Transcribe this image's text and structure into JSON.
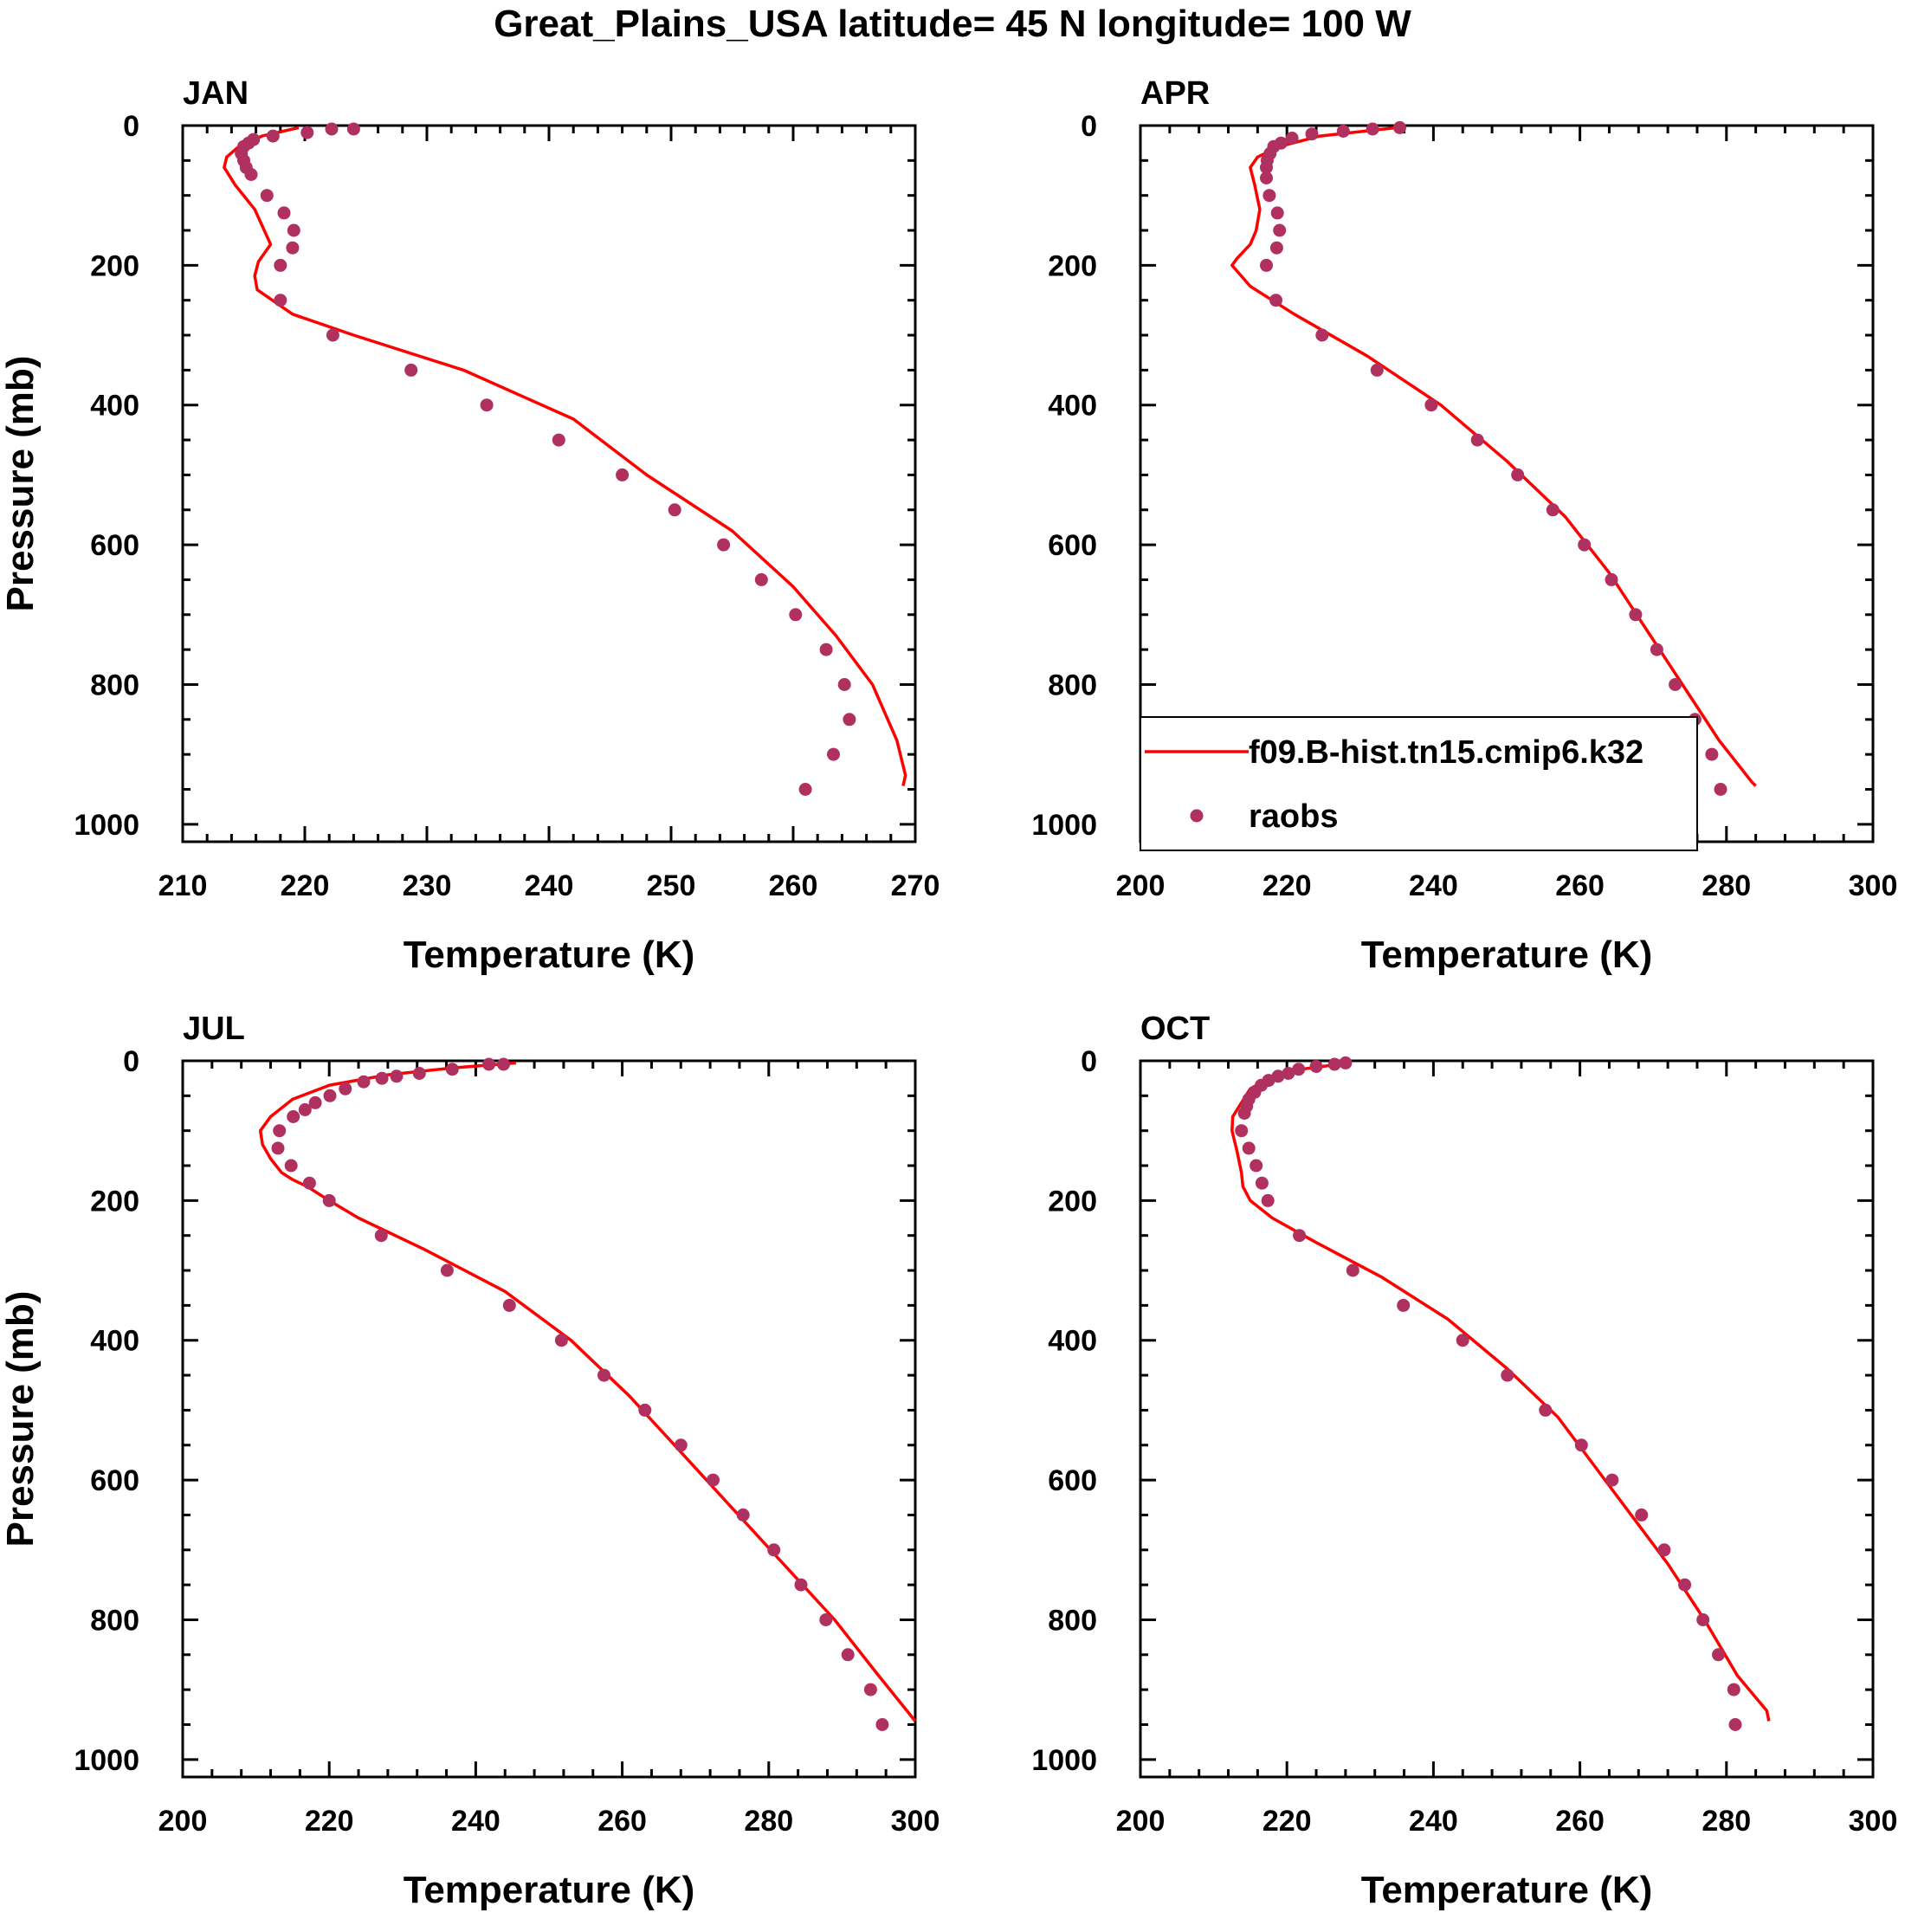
{
  "figure": {
    "title": "Great_Plains_USA  latitude= 45 N longitude= 100 W"
  },
  "legend": {
    "model_label": "f09.B-hist.tn15.cmip6.k32",
    "obs_label": "raobs",
    "location": "bottom-left of APR panel"
  },
  "colors": {
    "model": "#ff0000",
    "obs": "#b03060",
    "axis": "#000000"
  },
  "chart_data": [
    {
      "type": "line+scatter",
      "panel": "JAN",
      "title": "JAN",
      "xlabel": "Temperature (K)",
      "ylabel": "Pressure (mb)",
      "xlim": [
        210,
        270
      ],
      "xticks": [
        210,
        220,
        230,
        240,
        250,
        260,
        270
      ],
      "ylim": [
        0,
        1025
      ],
      "yticks": [
        0,
        200,
        400,
        600,
        800,
        1000
      ],
      "y_reversed": true,
      "series": [
        {
          "name": "f09.B-hist.tn15.cmip6.k32",
          "kind": "line",
          "x": [
            219.5,
            216.5,
            214.6,
            213.6,
            213.4,
            214.3,
            215.9,
            217.2,
            216.2,
            215.9,
            216.1,
            219.0,
            224.0,
            233.0,
            242.0,
            248.0,
            255.0,
            260.0,
            263.5,
            266.5,
            268.5,
            269.2,
            269.0
          ],
          "y": [
            3,
            15,
            30,
            45,
            60,
            85,
            120,
            170,
            195,
            215,
            235,
            270,
            300,
            350,
            420,
            500,
            580,
            660,
            730,
            800,
            880,
            930,
            945
          ]
        },
        {
          "name": "raobs",
          "kind": "scatter",
          "x": [
            224.0,
            222.2,
            220.2,
            217.4,
            215.8,
            215.4,
            215.0,
            214.8,
            215.0,
            215.2,
            215.6,
            216.9,
            218.3,
            219.1,
            219.0,
            218.0,
            218.0,
            222.3,
            228.7,
            234.9,
            240.8,
            246.0,
            250.3,
            254.3,
            257.4,
            260.2,
            262.7,
            264.2,
            264.6,
            263.3,
            261.0
          ],
          "y": [
            5,
            5,
            10,
            15,
            20,
            25,
            30,
            40,
            50,
            60,
            70,
            100,
            125,
            150,
            175,
            200,
            250,
            300,
            350,
            400,
            450,
            500,
            550,
            600,
            650,
            700,
            750,
            800,
            850,
            900,
            950
          ]
        }
      ]
    },
    {
      "type": "line+scatter",
      "panel": "APR",
      "title": "APR",
      "xlabel": "Temperature (K)",
      "ylabel": "",
      "xlim": [
        200,
        300
      ],
      "xticks": [
        200,
        220,
        240,
        260,
        280,
        300
      ],
      "ylim": [
        0,
        1025
      ],
      "yticks": [
        0,
        200,
        400,
        600,
        800,
        1000
      ],
      "y_reversed": true,
      "series": [
        {
          "name": "f09.B-hist.tn15.cmip6.k32",
          "kind": "line",
          "x": [
            235.0,
            224.5,
            219.0,
            216.0,
            215.0,
            215.6,
            216.3,
            215.8,
            215.0,
            213.2,
            212.5,
            215.0,
            221.0,
            231.0,
            241.0,
            250.0,
            258.0,
            264.0,
            269.0,
            274.0,
            279.0,
            283.5,
            284.0
          ],
          "y": [
            3,
            15,
            30,
            45,
            60,
            85,
            120,
            150,
            170,
            190,
            200,
            230,
            270,
            330,
            400,
            480,
            560,
            640,
            720,
            800,
            880,
            940,
            945
          ]
        },
        {
          "name": "raobs",
          "kind": "scatter",
          "x": [
            235.4,
            231.7,
            227.7,
            223.4,
            220.7,
            219.2,
            218.2,
            217.7,
            217.3,
            217.2,
            217.2,
            217.6,
            218.7,
            219.0,
            218.6,
            217.2,
            218.5,
            224.8,
            232.3,
            239.7,
            246.0,
            251.5,
            256.3,
            260.6,
            264.3,
            267.6,
            270.5,
            273.0,
            275.7,
            278.0,
            279.2
          ],
          "y": [
            3,
            5,
            8,
            12,
            18,
            25,
            30,
            40,
            50,
            60,
            75,
            100,
            125,
            150,
            175,
            200,
            250,
            300,
            350,
            400,
            450,
            500,
            550,
            600,
            650,
            700,
            750,
            800,
            850,
            900,
            950
          ]
        }
      ]
    },
    {
      "type": "line+scatter",
      "panel": "JUL",
      "title": "JUL",
      "xlabel": "Temperature (K)",
      "ylabel": "Pressure (mb)",
      "xlim": [
        200,
        300
      ],
      "xticks": [
        200,
        220,
        240,
        260,
        280,
        300
      ],
      "ylim": [
        0,
        1025
      ],
      "yticks": [
        0,
        200,
        400,
        600,
        800,
        1000
      ],
      "y_reversed": true,
      "series": [
        {
          "name": "f09.B-hist.tn15.cmip6.k32",
          "kind": "line",
          "x": [
            245.5,
            237.0,
            228.0,
            220.0,
            215.0,
            212.0,
            210.6,
            210.9,
            212.0,
            213.5,
            215.0,
            217.0,
            220.0,
            224.0,
            233.0,
            244.0,
            253.0,
            261.0,
            268.0,
            275.0,
            282.0,
            289.0,
            295.0,
            300.0
          ],
          "y": [
            3,
            10,
            20,
            35,
            55,
            80,
            100,
            120,
            140,
            160,
            170,
            180,
            200,
            225,
            270,
            330,
            400,
            480,
            560,
            640,
            720,
            800,
            880,
            945
          ]
        },
        {
          "name": "raobs",
          "kind": "scatter",
          "x": [
            243.8,
            241.8,
            236.8,
            232.3,
            229.2,
            227.2,
            224.7,
            222.2,
            220.1,
            218.1,
            216.7,
            215.1,
            213.2,
            213.0,
            214.8,
            217.3,
            220.0,
            227.1,
            236.1,
            244.6,
            251.7,
            257.5,
            263.1,
            268.0,
            272.4,
            276.5,
            280.7,
            284.4,
            287.8,
            290.8,
            293.9,
            295.5
          ],
          "y": [
            5,
            5,
            12,
            18,
            22,
            25,
            30,
            40,
            50,
            60,
            70,
            80,
            100,
            125,
            150,
            175,
            200,
            250,
            300,
            350,
            400,
            450,
            500,
            550,
            600,
            650,
            700,
            750,
            800,
            850,
            900,
            950
          ]
        }
      ]
    },
    {
      "type": "line+scatter",
      "panel": "OCT",
      "title": "OCT",
      "xlabel": "Temperature (K)",
      "ylabel": "",
      "xlim": [
        200,
        300
      ],
      "xticks": [
        200,
        220,
        240,
        260,
        280,
        300
      ],
      "ylim": [
        0,
        1025
      ],
      "yticks": [
        0,
        200,
        400,
        600,
        800,
        1000
      ],
      "y_reversed": true,
      "series": [
        {
          "name": "f09.B-hist.tn15.cmip6.k32",
          "kind": "line",
          "x": [
            228.5,
            222.0,
            217.5,
            215.0,
            213.8,
            212.6,
            212.5,
            213.2,
            213.8,
            214.0,
            215.0,
            218.0,
            224.0,
            233.0,
            242.0,
            250.0,
            257.0,
            262.0,
            267.0,
            272.0,
            277.0,
            281.5,
            285.5,
            285.8
          ],
          "y": [
            3,
            12,
            25,
            40,
            60,
            80,
            100,
            130,
            160,
            180,
            200,
            225,
            260,
            310,
            370,
            440,
            510,
            580,
            650,
            720,
            800,
            880,
            930,
            945
          ]
        },
        {
          "name": "raobs",
          "kind": "scatter",
          "x": [
            228.0,
            226.5,
            224.0,
            221.6,
            220.2,
            218.8,
            217.5,
            216.5,
            215.6,
            214.8,
            214.5,
            214.2,
            213.8,
            214.8,
            215.8,
            216.6,
            217.4,
            221.7,
            229.0,
            235.9,
            244.0,
            250.1,
            255.3,
            260.2,
            264.4,
            268.4,
            271.5,
            274.3,
            276.8,
            278.9,
            281.0,
            281.2
          ],
          "y": [
            3,
            5,
            8,
            12,
            18,
            22,
            28,
            35,
            45,
            55,
            65,
            75,
            100,
            125,
            150,
            175,
            200,
            250,
            300,
            350,
            400,
            450,
            500,
            550,
            600,
            650,
            700,
            750,
            800,
            850,
            900,
            950
          ]
        }
      ]
    }
  ]
}
